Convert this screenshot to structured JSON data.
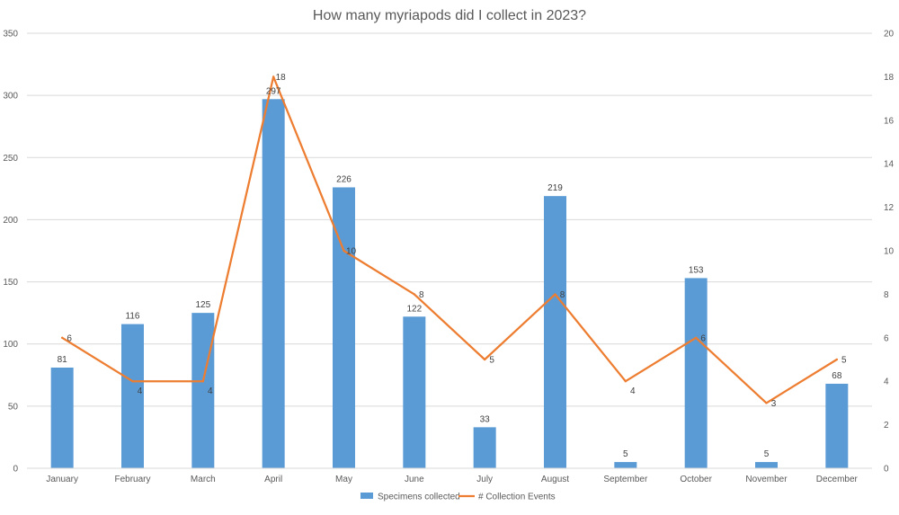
{
  "chart_data": {
    "type": "bar",
    "title": "How many myriapods did I collect in 2023?",
    "categories": [
      "January",
      "February",
      "March",
      "April",
      "May",
      "June",
      "July",
      "August",
      "September",
      "October",
      "November",
      "December"
    ],
    "series": [
      {
        "name": "Specimens collected",
        "type": "bar",
        "axis": "left",
        "color": "#5B9BD5",
        "values": [
          81,
          116,
          125,
          297,
          226,
          122,
          33,
          219,
          5,
          153,
          5,
          68
        ]
      },
      {
        "name": "# Collection Events",
        "type": "line",
        "axis": "right",
        "color": "#ED7D31",
        "values": [
          6,
          4,
          4,
          18,
          10,
          8,
          5,
          8,
          4,
          6,
          3,
          5
        ]
      }
    ],
    "y_left": {
      "min": 0,
      "max": 350,
      "ticks": [
        "0",
        "50",
        "100",
        "150",
        "200",
        "250",
        "300",
        "350"
      ]
    },
    "y_right": {
      "min": 0,
      "max": 20,
      "ticks": [
        "0",
        "2",
        "4",
        "6",
        "8",
        "10",
        "12",
        "14",
        "16",
        "18",
        "20"
      ]
    },
    "grid": true,
    "legend_position": "bottom"
  }
}
